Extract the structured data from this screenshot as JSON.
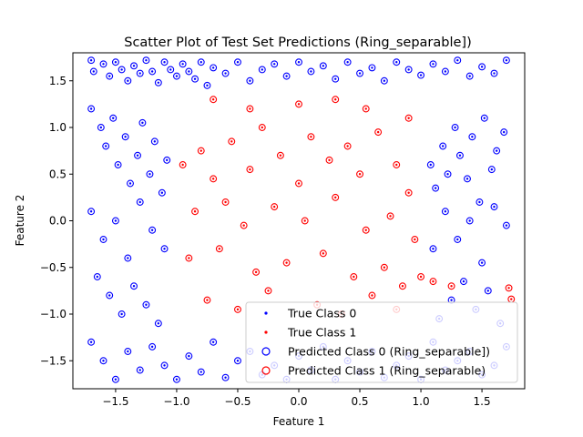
{
  "chart_data": {
    "type": "scatter",
    "title": "Scatter Plot of Test Set Predictions (Ring_separable])",
    "xlabel": "Feature 1",
    "ylabel": "Feature 2",
    "xlim": [
      -1.85,
      1.85
    ],
    "ylim": [
      -1.8,
      1.8
    ],
    "xticks": [
      -1.5,
      -1.0,
      -0.5,
      0.0,
      0.5,
      1.0,
      1.5
    ],
    "xtick_labels": [
      "−1.5",
      "−1.0",
      "−0.5",
      "0.0",
      "0.5",
      "1.0",
      "1.5"
    ],
    "yticks": [
      -1.5,
      -1.0,
      -0.5,
      0.0,
      0.5,
      1.0,
      1.5
    ],
    "ytick_labels": [
      "−1.5",
      "−1.0",
      "−0.5",
      "0.0",
      "0.5",
      "1.0",
      "1.5"
    ],
    "grid": false,
    "legend_position": "lower-right",
    "colors": {
      "class0": "#0000ff",
      "class1": "#ff0000"
    },
    "series": [
      {
        "name": "True Class 0",
        "marker": "dot",
        "color": "#0000ff",
        "x": [
          -1.7,
          -1.68,
          -1.6,
          -1.55,
          -1.5,
          -1.45,
          -1.4,
          -1.35,
          -1.3,
          -1.25,
          -1.2,
          -1.15,
          -1.1,
          -1.05,
          -1.0,
          -0.95,
          -0.9,
          -0.85,
          -0.8,
          -0.75,
          -0.7,
          -0.6,
          -0.5,
          -0.4,
          -0.3,
          -0.2,
          -0.1,
          0.0,
          0.1,
          0.2,
          0.3,
          0.4,
          0.5,
          0.6,
          0.7,
          0.8,
          0.9,
          1.0,
          1.1,
          1.2,
          1.3,
          1.4,
          1.5,
          1.6,
          1.7,
          -1.7,
          -1.62,
          -1.58,
          -1.52,
          -1.48,
          -1.42,
          -1.38,
          -1.32,
          -1.28,
          -1.22,
          -1.18,
          -1.12,
          -1.08,
          1.08,
          1.12,
          1.18,
          1.22,
          1.28,
          1.32,
          1.38,
          1.42,
          1.48,
          1.52,
          1.58,
          1.62,
          1.68,
          -1.7,
          -1.6,
          -1.5,
          -1.4,
          -1.3,
          -1.2,
          -1.1,
          1.1,
          1.2,
          1.3,
          1.4,
          1.5,
          1.6,
          1.7,
          -1.65,
          -1.55,
          -1.45,
          -1.35,
          -1.25,
          -1.15,
          1.15,
          1.25,
          1.35,
          1.45,
          1.55,
          1.65,
          -1.7,
          -1.6,
          -1.5,
          -1.4,
          -1.3,
          -1.2,
          -1.1,
          -1.0,
          -0.9,
          -0.8,
          -0.7,
          -0.6,
          -0.5,
          -0.4,
          -0.3,
          -0.2,
          -0.1,
          0.0,
          0.1,
          0.2,
          0.3,
          0.4,
          0.5,
          0.6,
          0.7,
          0.8,
          0.9,
          1.0,
          1.1,
          1.2,
          1.3,
          1.4,
          1.5,
          1.6,
          1.7
        ],
        "y": [
          1.72,
          1.6,
          1.68,
          1.55,
          1.7,
          1.62,
          1.5,
          1.66,
          1.58,
          1.72,
          1.6,
          1.48,
          1.7,
          1.62,
          1.55,
          1.68,
          1.6,
          1.52,
          1.7,
          1.45,
          1.64,
          1.58,
          1.7,
          1.5,
          1.62,
          1.68,
          1.55,
          1.7,
          1.6,
          1.66,
          1.52,
          1.7,
          1.58,
          1.64,
          1.5,
          1.7,
          1.62,
          1.56,
          1.68,
          1.6,
          1.72,
          1.55,
          1.65,
          1.58,
          1.72,
          1.2,
          1.0,
          0.8,
          1.1,
          0.6,
          0.9,
          0.4,
          0.7,
          1.05,
          0.5,
          0.85,
          0.3,
          0.65,
          0.6,
          0.35,
          0.8,
          0.5,
          1.0,
          0.7,
          0.45,
          0.9,
          0.2,
          1.1,
          0.55,
          0.75,
          0.95,
          0.1,
          -0.2,
          0.0,
          -0.4,
          0.2,
          -0.1,
          -0.3,
          -0.3,
          0.1,
          -0.2,
          0.0,
          -0.45,
          0.15,
          -0.05,
          -0.6,
          -0.8,
          -1.0,
          -0.7,
          -0.9,
          -1.1,
          -1.05,
          -0.85,
          -0.65,
          -0.95,
          -0.75,
          -1.1,
          -1.3,
          -1.5,
          -1.7,
          -1.4,
          -1.6,
          -1.35,
          -1.55,
          -1.7,
          -1.45,
          -1.62,
          -1.3,
          -1.68,
          -1.5,
          -1.4,
          -1.65,
          -1.55,
          -1.7,
          -1.45,
          -1.6,
          -1.35,
          -1.7,
          -1.5,
          -1.62,
          -1.4,
          -1.68,
          -1.55,
          -1.45,
          -1.7,
          -1.3,
          -1.6,
          -1.5,
          -1.4,
          -1.65,
          -1.55,
          -1.35
        ]
      },
      {
        "name": "True Class 1",
        "marker": "dot",
        "color": "#ff0000",
        "x": [
          -0.95,
          -0.8,
          -0.7,
          -0.55,
          -0.4,
          -0.3,
          -0.15,
          0.0,
          0.1,
          0.25,
          0.4,
          0.5,
          0.65,
          0.8,
          0.9,
          -0.85,
          -0.6,
          -0.45,
          -0.2,
          0.05,
          0.3,
          0.55,
          0.75,
          0.95,
          -0.9,
          -0.65,
          -0.35,
          -0.1,
          0.2,
          0.45,
          0.7,
          0.85,
          -0.75,
          -0.5,
          -0.25,
          0.15,
          0.35,
          0.6,
          0.8,
          -0.7,
          -0.4,
          0.0,
          0.3,
          0.55,
          0.9,
          1.0,
          1.1,
          1.25,
          1.72,
          1.74
        ],
        "y": [
          0.6,
          0.75,
          0.45,
          0.85,
          0.55,
          1.0,
          0.7,
          0.4,
          0.9,
          0.65,
          0.8,
          0.5,
          0.95,
          0.6,
          0.3,
          0.1,
          0.2,
          -0.05,
          0.15,
          0.0,
          0.25,
          -0.1,
          0.05,
          -0.2,
          -0.4,
          -0.3,
          -0.55,
          -0.45,
          -0.35,
          -0.6,
          -0.5,
          -0.7,
          -0.85,
          -0.95,
          -0.75,
          -0.9,
          -1.0,
          -0.8,
          -0.95,
          1.3,
          1.2,
          1.25,
          1.3,
          1.2,
          1.1,
          -0.6,
          -0.65,
          -0.7,
          -0.72,
          -0.84
        ]
      },
      {
        "name": "Predicted Class 0 (Ring_separable])",
        "marker": "open-circle",
        "color": "#0000ff",
        "same_points_as": "True Class 0"
      },
      {
        "name": "Predicted Class 1 (Ring_separable)",
        "marker": "open-circle",
        "color": "#ff0000",
        "same_points_as": "True Class 1"
      }
    ]
  }
}
